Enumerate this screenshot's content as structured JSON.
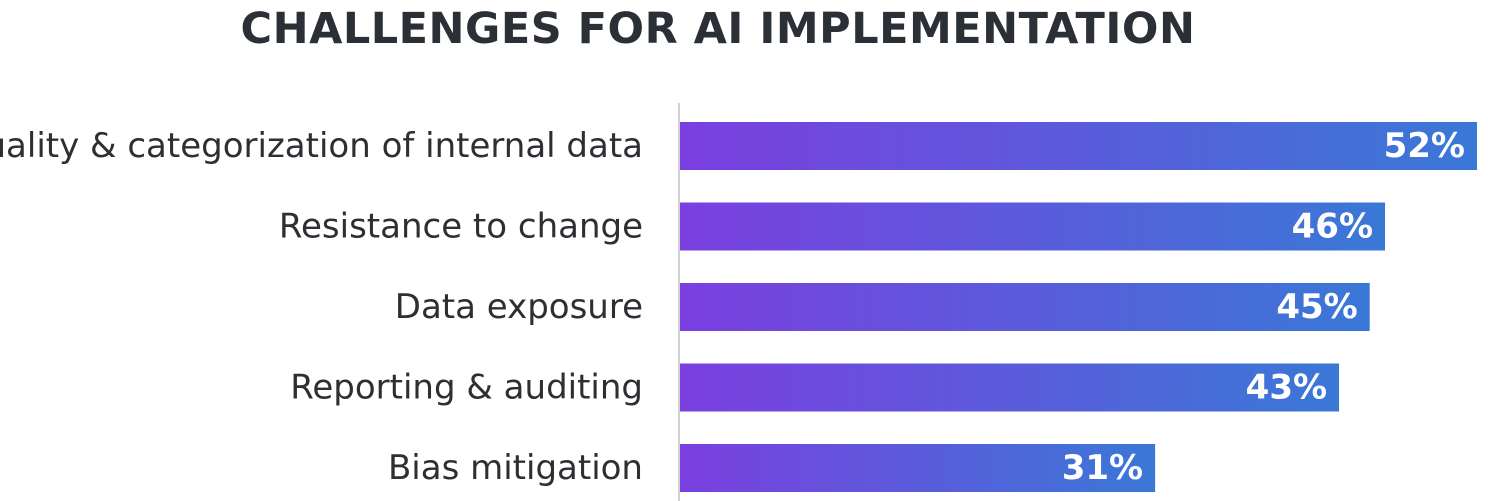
{
  "chart_data": {
    "type": "bar",
    "orientation": "horizontal",
    "title": "CHALLENGES FOR AI IMPLEMENTATION",
    "categories": [
      "Quality & categorization of internal data",
      "Resistance to change",
      "Data exposure",
      "Reporting & auditing",
      "Bias mitigation"
    ],
    "values": [
      52,
      46,
      45,
      43,
      31
    ],
    "value_labels": [
      "52%",
      "46%",
      "45%",
      "43%",
      "31%"
    ],
    "unit": "%",
    "xlim": [
      0,
      52
    ],
    "grid": false,
    "legend": "none",
    "colors": {
      "bar_gradient_start": "#7b3fe0",
      "bar_gradient_end": "#3a78d6",
      "baseline": "#d0d0d0",
      "title": "#2b2f36",
      "category_text": "#2d2f33",
      "value_text": "#ffffff"
    }
  }
}
